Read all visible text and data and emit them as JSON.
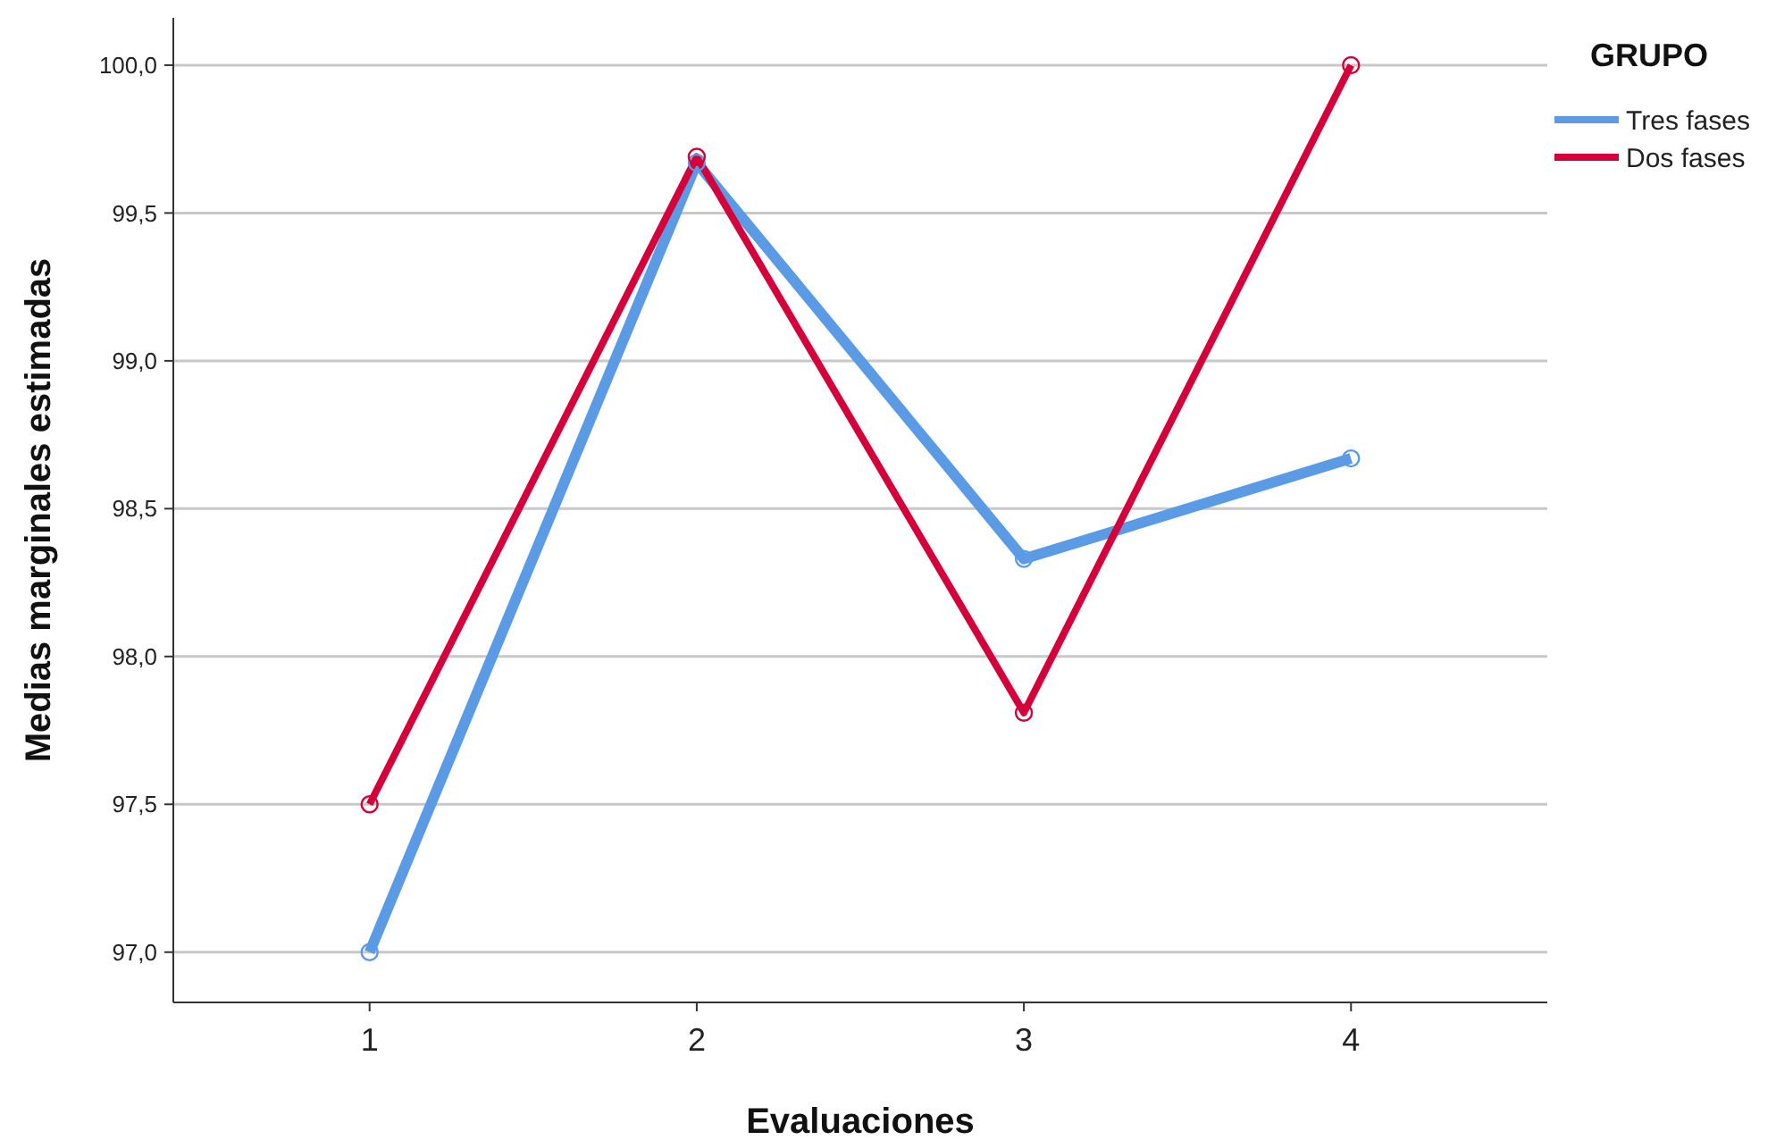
{
  "chart_data": {
    "type": "line",
    "xlabel": "Evaluaciones",
    "ylabel": "Medias marginales estimadas",
    "legend_title": "GRUPO",
    "categories": [
      "1",
      "2",
      "3",
      "4"
    ],
    "series": [
      {
        "name": "Tres fases",
        "color": "#5b9be6",
        "values": [
          97.0,
          99.67,
          98.33,
          98.67
        ]
      },
      {
        "name": "Dos fases",
        "color": "#d5003a",
        "values": [
          97.5,
          99.69,
          97.81,
          100.0
        ]
      }
    ],
    "ylim": [
      96.83,
      100.16
    ],
    "yticks": [
      {
        "value": 97,
        "label": "97,0"
      },
      {
        "value": 97.5,
        "label": "97,5"
      },
      {
        "value": 98,
        "label": "98,0"
      },
      {
        "value": 98.5,
        "label": "98,5"
      },
      {
        "value": 99,
        "label": "99,0"
      },
      {
        "value": 99.5,
        "label": "99,5"
      },
      {
        "value": 100,
        "label": "100,0"
      }
    ],
    "grid": "y",
    "legend": "top right",
    "marker": "circle",
    "line_style": "solid"
  }
}
